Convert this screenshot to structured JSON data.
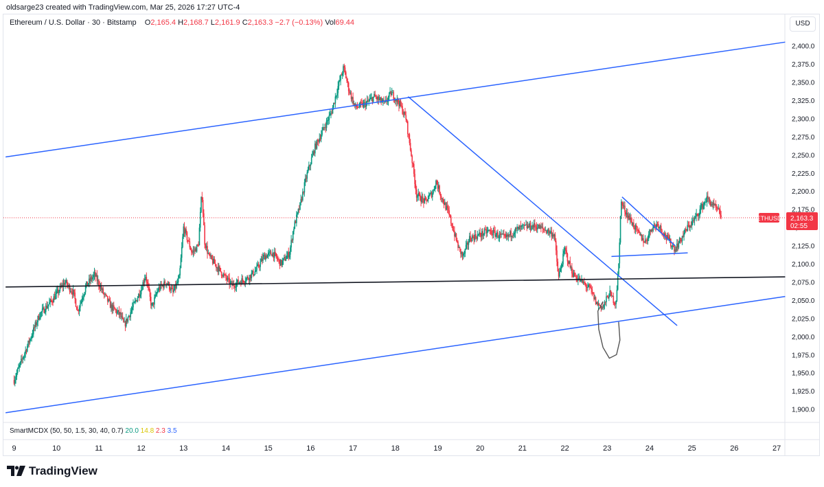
{
  "header": {
    "byline": "oldsarge23 created with TradingView.com, Mar 25, 2026 17:27 UTC-4",
    "symbol_desc": "Ethereum / U.S. Dollar · 30 · Bitstamp",
    "open_label": "O",
    "open": "2,165.4",
    "high_label": "H",
    "high": "2,168.7",
    "low_label": "L",
    "low": "2,161.9",
    "close_label": "C",
    "close": "2,163.3",
    "change": "−2.7 (−0.13%)",
    "vol_label": "Vol",
    "vol": "69.44"
  },
  "currency": "USD",
  "indicator": {
    "name": "SmartMCDX (50, 50, 1.5, 30, 40, 0.7)",
    "v1": "20.0",
    "v2": "14.8",
    "v3": "2.3",
    "v4": "3.5"
  },
  "price_tag": {
    "symbol": "ETHUSD",
    "price": "2,163.3",
    "countdown": "02:55"
  },
  "logo_text": "TradingView",
  "colors": {
    "up": "#089981",
    "down": "#f23645",
    "trendline": "#2962ff",
    "support": "#131722",
    "annotation": "#555555"
  },
  "chart_data": {
    "type": "candlestick",
    "x_axis": {
      "tick_labels": [
        "9",
        "10",
        "11",
        "12",
        "13",
        "14",
        "15",
        "16",
        "17",
        "18",
        "19",
        "20",
        "21",
        "22",
        "23",
        "24",
        "25",
        "26",
        "27"
      ]
    },
    "y_axis": {
      "tick_values": [
        1900,
        1925,
        1950,
        1975,
        2000,
        2025,
        2050,
        2075,
        2100,
        2125,
        2150,
        2175,
        2200,
        2225,
        2250,
        2275,
        2300,
        2325,
        2350,
        2375,
        2400
      ],
      "tick_labels": [
        "1,900.0",
        "1,925.0",
        "1,950.0",
        "1,975.0",
        "2,000.0",
        "2,025.0",
        "2,050.0",
        "2,075.0",
        "2,100.0",
        "2,125.0",
        "2,150.0",
        "2,175.0",
        "2,200.0",
        "2,225.0",
        "2,250.0",
        "2,275.0",
        "2,300.0",
        "2,325.0",
        "2,350.0",
        "2,375.0",
        "2,400.0"
      ],
      "range": [
        1885,
        2418
      ],
      "scale": "linear"
    },
    "last_price": 2163.3,
    "price_path": [
      [
        9.0,
        1940
      ],
      [
        9.3,
        1985
      ],
      [
        9.6,
        2030
      ],
      [
        9.9,
        2050
      ],
      [
        10.2,
        2075
      ],
      [
        10.4,
        2060
      ],
      [
        10.5,
        2035
      ],
      [
        10.7,
        2070
      ],
      [
        10.9,
        2085
      ],
      [
        11.1,
        2060
      ],
      [
        11.3,
        2040
      ],
      [
        11.5,
        2030
      ],
      [
        11.6,
        2015
      ],
      [
        11.8,
        2040
      ],
      [
        12.0,
        2065
      ],
      [
        12.1,
        2085
      ],
      [
        12.25,
        2040
      ],
      [
        12.4,
        2065
      ],
      [
        12.6,
        2075
      ],
      [
        12.75,
        2060
      ],
      [
        12.9,
        2080
      ],
      [
        13.0,
        2150
      ],
      [
        13.2,
        2115
      ],
      [
        13.35,
        2125
      ],
      [
        13.43,
        2200
      ],
      [
        13.5,
        2130
      ],
      [
        13.6,
        2110
      ],
      [
        13.8,
        2095
      ],
      [
        14.0,
        2080
      ],
      [
        14.15,
        2070
      ],
      [
        14.3,
        2075
      ],
      [
        14.5,
        2080
      ],
      [
        14.7,
        2090
      ],
      [
        14.9,
        2110
      ],
      [
        15.1,
        2115
      ],
      [
        15.3,
        2100
      ],
      [
        15.5,
        2115
      ],
      [
        15.6,
        2150
      ],
      [
        15.75,
        2180
      ],
      [
        15.9,
        2220
      ],
      [
        16.1,
        2260
      ],
      [
        16.3,
        2285
      ],
      [
        16.5,
        2310
      ],
      [
        16.65,
        2345
      ],
      [
        16.78,
        2370
      ],
      [
        16.9,
        2340
      ],
      [
        17.05,
        2315
      ],
      [
        17.3,
        2320
      ],
      [
        17.5,
        2330
      ],
      [
        17.75,
        2320
      ],
      [
        17.9,
        2335
      ],
      [
        18.1,
        2320
      ],
      [
        18.25,
        2300
      ],
      [
        18.4,
        2240
      ],
      [
        18.5,
        2195
      ],
      [
        18.7,
        2185
      ],
      [
        18.9,
        2200
      ],
      [
        18.95,
        2215
      ],
      [
        19.1,
        2190
      ],
      [
        19.25,
        2170
      ],
      [
        19.4,
        2140
      ],
      [
        19.5,
        2120
      ],
      [
        19.6,
        2110
      ],
      [
        19.75,
        2135
      ],
      [
        20.0,
        2140
      ],
      [
        20.2,
        2145
      ],
      [
        20.4,
        2140
      ],
      [
        20.6,
        2135
      ],
      [
        20.8,
        2145
      ],
      [
        21.0,
        2150
      ],
      [
        21.3,
        2152
      ],
      [
        21.6,
        2145
      ],
      [
        21.75,
        2140
      ],
      [
        21.85,
        2080
      ],
      [
        22.0,
        2120
      ],
      [
        22.1,
        2100
      ],
      [
        22.2,
        2085
      ],
      [
        22.4,
        2075
      ],
      [
        22.6,
        2065
      ],
      [
        22.75,
        2045
      ],
      [
        22.9,
        2040
      ],
      [
        23.05,
        2060
      ],
      [
        23.15,
        2050
      ],
      [
        23.2,
        2045
      ],
      [
        23.28,
        2105
      ],
      [
        23.32,
        2185
      ],
      [
        23.45,
        2170
      ],
      [
        23.6,
        2155
      ],
      [
        23.75,
        2140
      ],
      [
        23.9,
        2130
      ],
      [
        24.05,
        2150
      ],
      [
        24.2,
        2155
      ],
      [
        24.35,
        2140
      ],
      [
        24.5,
        2128
      ],
      [
        24.6,
        2120
      ],
      [
        24.75,
        2135
      ],
      [
        24.9,
        2150
      ],
      [
        25.05,
        2160
      ],
      [
        25.2,
        2175
      ],
      [
        25.35,
        2190
      ],
      [
        25.5,
        2180
      ],
      [
        25.65,
        2170
      ],
      [
        25.7,
        2163.3
      ]
    ],
    "drawings": [
      {
        "kind": "trendline",
        "name": "upper-channel",
        "points": [
          [
            8.8,
            2247
          ],
          [
            27.2,
            2405
          ]
        ]
      },
      {
        "kind": "trendline",
        "name": "lower-channel",
        "points": [
          [
            8.8,
            1895
          ],
          [
            27.2,
            2055
          ]
        ]
      },
      {
        "kind": "trendline",
        "name": "descending-trendline",
        "points": [
          [
            18.3,
            2330
          ],
          [
            24.65,
            2015
          ]
        ]
      },
      {
        "kind": "trendline",
        "name": "horizontal-support",
        "points": [
          [
            8.8,
            2068
          ],
          [
            27.2,
            2082
          ]
        ]
      },
      {
        "kind": "trendline",
        "name": "flag-upper",
        "points": [
          [
            23.35,
            2192
          ],
          [
            24.6,
            2125
          ]
        ]
      },
      {
        "kind": "trendline",
        "name": "flag-lower",
        "points": [
          [
            23.1,
            2110
          ],
          [
            24.9,
            2115
          ]
        ]
      }
    ]
  }
}
